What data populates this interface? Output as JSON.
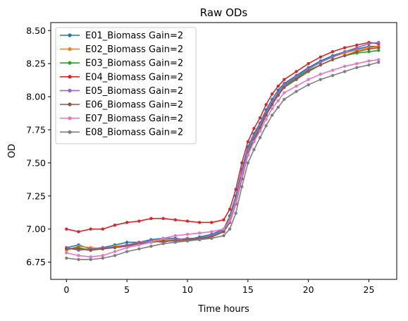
{
  "chart_data": {
    "type": "line",
    "title": "Raw ODs",
    "xlabel": "Time hours",
    "ylabel": "OD",
    "xlim": [
      -1.3,
      27.3
    ],
    "ylim": [
      6.62,
      8.56
    ],
    "xticks": [
      0,
      5,
      10,
      15,
      20,
      25
    ],
    "yticks": [
      6.75,
      7.0,
      7.25,
      7.5,
      7.75,
      8.0,
      8.25,
      8.5
    ],
    "ytick_labels": [
      "6.75",
      "7.00",
      "7.25",
      "7.50",
      "7.75",
      "8.00",
      "8.25",
      "8.50"
    ],
    "grid": false,
    "legend_position": "upper-left",
    "series": [
      {
        "name": "E01_Biomass Gain=2",
        "color": "#1f77b4",
        "x": [
          0,
          1,
          2,
          3,
          4,
          5,
          6,
          7,
          8,
          9,
          10,
          11,
          12,
          13,
          13.5,
          14,
          14.5,
          15,
          15.5,
          16,
          16.5,
          17,
          17.5,
          18,
          19,
          20,
          21,
          22,
          23,
          24,
          25,
          25.8
        ],
        "y": [
          6.86,
          6.88,
          6.85,
          6.86,
          6.88,
          6.9,
          6.9,
          6.92,
          6.93,
          6.93,
          6.92,
          6.94,
          6.96,
          7.0,
          7.1,
          7.25,
          7.45,
          7.62,
          7.72,
          7.8,
          7.9,
          7.98,
          8.05,
          8.1,
          8.16,
          8.22,
          8.27,
          8.31,
          8.34,
          8.36,
          8.38,
          8.38
        ]
      },
      {
        "name": "E02_Biomass Gain=2",
        "color": "#ff7f0e",
        "x": [
          0,
          1,
          2,
          3,
          4,
          5,
          6,
          7,
          8,
          9,
          10,
          11,
          12,
          13,
          13.5,
          14,
          14.5,
          15,
          15.5,
          16,
          16.5,
          17,
          17.5,
          18,
          19,
          20,
          21,
          22,
          23,
          24,
          25,
          25.8
        ],
        "y": [
          6.84,
          6.87,
          6.86,
          6.85,
          6.87,
          6.88,
          6.9,
          6.91,
          6.92,
          6.92,
          6.93,
          6.93,
          6.95,
          6.99,
          7.08,
          7.22,
          7.42,
          7.6,
          7.7,
          7.78,
          7.88,
          7.96,
          8.03,
          8.09,
          8.15,
          8.21,
          8.26,
          8.3,
          8.33,
          8.35,
          8.37,
          8.38
        ]
      },
      {
        "name": "E03_Biomass Gain=2",
        "color": "#2ca02c",
        "x": [
          0,
          1,
          2,
          3,
          4,
          5,
          6,
          7,
          8,
          9,
          10,
          11,
          12,
          13,
          13.5,
          14,
          14.5,
          15,
          15.5,
          16,
          16.5,
          17,
          17.5,
          18,
          19,
          20,
          21,
          22,
          23,
          24,
          25,
          25.8
        ],
        "y": [
          6.85,
          6.86,
          6.84,
          6.86,
          6.86,
          6.88,
          6.89,
          6.9,
          6.91,
          6.91,
          6.92,
          6.92,
          6.94,
          6.98,
          7.06,
          7.2,
          7.4,
          7.58,
          7.68,
          7.77,
          7.87,
          7.95,
          8.02,
          8.08,
          8.14,
          8.2,
          8.24,
          8.28,
          8.31,
          8.33,
          8.34,
          8.35
        ]
      },
      {
        "name": "E04_Biomass Gain=2",
        "color": "#d62728",
        "x": [
          0,
          1,
          2,
          3,
          4,
          5,
          6,
          7,
          8,
          9,
          10,
          11,
          12,
          13,
          13.5,
          14,
          14.5,
          15,
          15.5,
          16,
          16.5,
          17,
          17.5,
          18,
          19,
          20,
          21,
          22,
          23,
          24,
          25,
          25.8
        ],
        "y": [
          7.0,
          6.98,
          7.0,
          7.0,
          7.03,
          7.05,
          7.06,
          7.08,
          7.08,
          7.07,
          7.06,
          7.05,
          7.05,
          7.07,
          7.15,
          7.3,
          7.5,
          7.66,
          7.76,
          7.84,
          7.94,
          8.02,
          8.08,
          8.13,
          8.19,
          8.25,
          8.3,
          8.34,
          8.37,
          8.39,
          8.41,
          8.4
        ]
      },
      {
        "name": "E05_Biomass Gain=2",
        "color": "#9467bd",
        "x": [
          0,
          1,
          2,
          3,
          4,
          5,
          6,
          7,
          8,
          9,
          10,
          11,
          12,
          13,
          13.5,
          14,
          14.5,
          15,
          15.5,
          16,
          16.5,
          17,
          17.5,
          18,
          19,
          20,
          21,
          22,
          23,
          24,
          25,
          25.8
        ],
        "y": [
          6.86,
          6.84,
          6.85,
          6.86,
          6.86,
          6.88,
          6.9,
          6.91,
          6.9,
          6.92,
          6.93,
          6.93,
          6.95,
          6.99,
          7.07,
          7.22,
          7.43,
          7.6,
          7.7,
          7.79,
          7.88,
          7.96,
          8.03,
          8.09,
          8.15,
          8.21,
          8.26,
          8.3,
          8.34,
          8.37,
          8.4,
          8.41
        ]
      },
      {
        "name": "E06_Biomass Gain=2",
        "color": "#8c564b",
        "x": [
          0,
          1,
          2,
          3,
          4,
          5,
          6,
          7,
          8,
          9,
          10,
          11,
          12,
          13,
          13.5,
          14,
          14.5,
          15,
          15.5,
          16,
          16.5,
          17,
          17.5,
          18,
          19,
          20,
          21,
          22,
          23,
          24,
          25,
          25.8
        ],
        "y": [
          6.85,
          6.85,
          6.84,
          6.85,
          6.86,
          6.87,
          6.89,
          6.9,
          6.91,
          6.91,
          6.92,
          6.93,
          6.94,
          6.98,
          7.05,
          7.19,
          7.38,
          7.56,
          7.67,
          7.76,
          7.86,
          7.94,
          8.01,
          8.07,
          8.13,
          8.19,
          8.24,
          8.28,
          8.31,
          8.34,
          8.36,
          8.37
        ]
      },
      {
        "name": "E07_Biomass Gain=2",
        "color": "#e377c2",
        "x": [
          0,
          1,
          2,
          3,
          4,
          5,
          6,
          7,
          8,
          9,
          10,
          11,
          12,
          13,
          13.5,
          14,
          14.5,
          15,
          15.5,
          16,
          16.5,
          17,
          17.5,
          18,
          19,
          20,
          21,
          22,
          23,
          24,
          25,
          25.8
        ],
        "y": [
          6.82,
          6.8,
          6.79,
          6.8,
          6.83,
          6.86,
          6.88,
          6.9,
          6.93,
          6.95,
          6.96,
          6.97,
          6.98,
          7.0,
          7.06,
          7.2,
          7.4,
          7.56,
          7.66,
          7.74,
          7.83,
          7.91,
          7.97,
          8.03,
          8.08,
          8.13,
          8.17,
          8.2,
          8.23,
          8.25,
          8.27,
          8.28
        ]
      },
      {
        "name": "E08_Biomass Gain=2",
        "color": "#7f7f7f",
        "x": [
          0,
          1,
          2,
          3,
          4,
          5,
          6,
          7,
          8,
          9,
          10,
          11,
          12,
          13,
          13.5,
          14,
          14.5,
          15,
          15.5,
          16,
          16.5,
          17,
          17.5,
          18,
          19,
          20,
          21,
          22,
          23,
          24,
          25,
          25.8
        ],
        "y": [
          6.78,
          6.77,
          6.77,
          6.78,
          6.8,
          6.83,
          6.85,
          6.87,
          6.89,
          6.9,
          6.91,
          6.92,
          6.93,
          6.95,
          7.0,
          7.12,
          7.32,
          7.5,
          7.6,
          7.69,
          7.78,
          7.86,
          7.92,
          7.98,
          8.04,
          8.09,
          8.13,
          8.16,
          8.19,
          8.22,
          8.24,
          8.26
        ]
      }
    ]
  }
}
